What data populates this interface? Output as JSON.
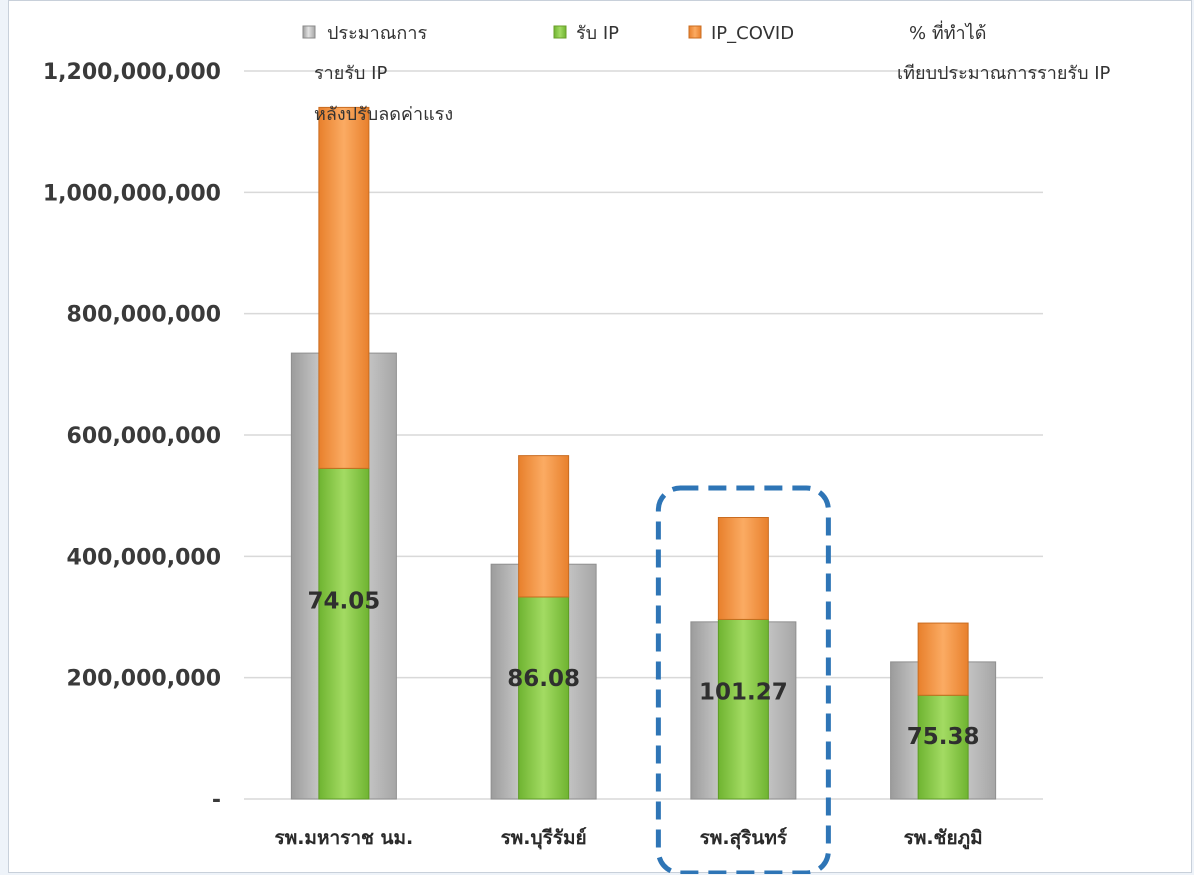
{
  "chart_data": {
    "type": "bar",
    "categories": [
      "รพ.มหาราช นม.",
      "รพ.บุรีรัมย์",
      "รพ.สุรินทร์",
      "รพ.ชัยภูมิ"
    ],
    "series": [
      {
        "name": "ประมาณการรายรับ IP หลังปรับลดค่าแรง",
        "values": [
          735000000,
          387000000,
          292000000,
          226000000
        ],
        "color": "#c8c8c8"
      },
      {
        "name": "รับ IP",
        "values": [
          545000000,
          333000000,
          296000000,
          171000000
        ],
        "color": "#92d050"
      },
      {
        "name": "IP_COVID",
        "values": [
          595000000,
          233000000,
          168000000,
          119000000
        ],
        "color": "#f79646"
      }
    ],
    "percent_series": {
      "name": "% ที่ทำได้ เทียบประมาณการรายรับ IP",
      "labels": [
        "74.05",
        "86.08",
        "101.27",
        "75.38"
      ]
    },
    "stacked": [
      "รับ IP",
      "IP_COVID"
    ],
    "ylim": [
      0,
      1200000000
    ],
    "yticks": [
      0,
      200000000,
      400000000,
      600000000,
      800000000,
      1000000000,
      1200000000
    ],
    "ytick_labels": [
      "-",
      "200,000,000",
      "400,000,000",
      "600,000,000",
      "800,000,000",
      "1,000,000,000",
      "1,200,000,000"
    ],
    "grid": true,
    "legend_position": "top",
    "highlight_category": "รพ.สุรินทร์",
    "highlight_color": "#2e75b6"
  },
  "legend": {
    "budget_lines": [
      "ประมาณการ",
      "รายรับ IP",
      "หลังปรับลดค่าแรง"
    ],
    "ip": "รับ IP",
    "covid": "IP_COVID",
    "pct_lines": [
      "% ที่ทำได้",
      "เทียบประมาณการรายรับ IP"
    ]
  }
}
